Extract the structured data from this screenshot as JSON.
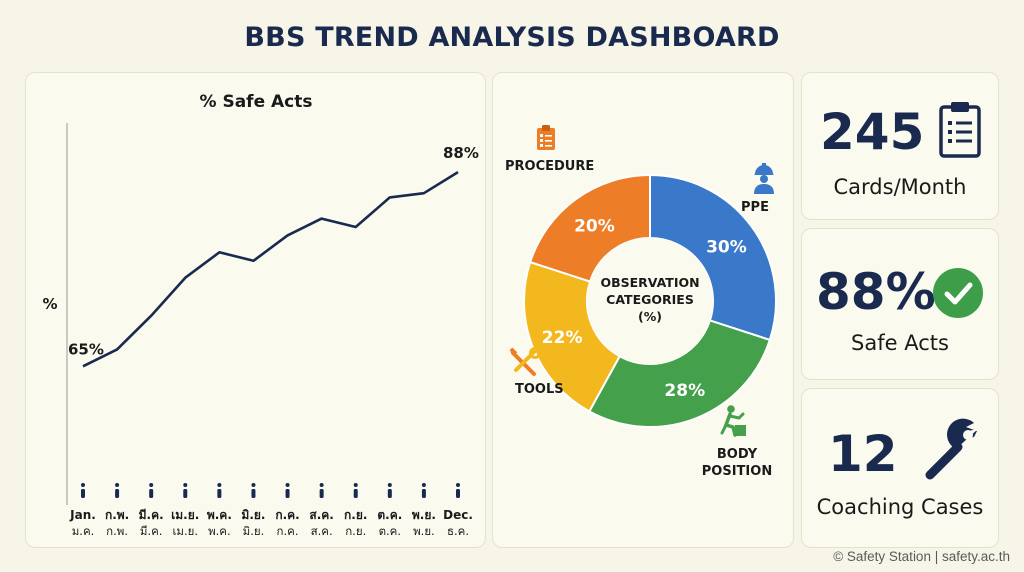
{
  "header": {
    "title": "BBS TREND ANALYSIS DASHBOARD"
  },
  "chart_data": [
    {
      "type": "line",
      "title": "% Safe Acts",
      "ylabel": "%",
      "categories": [
        "Jan.",
        "ก.พ.",
        "มี.ค.",
        "เม.ย.",
        "พ.ค.",
        "มิ.ย.",
        "ก.ค.",
        "ส.ค.",
        "ก.ย.",
        "ต.ค.",
        "พ.ย.",
        "Dec."
      ],
      "categories_secondary": [
        "ม.ค.",
        "ก.พ.",
        "มี.ค.",
        "เม.ย.",
        "พ.ค.",
        "มิ.ย.",
        "ก.ค.",
        "ส.ค.",
        "ก.ย.",
        "ต.ค.",
        "พ.ย.",
        "ธ.ค."
      ],
      "values": [
        65,
        67,
        71,
        75.5,
        78.5,
        77.5,
        80.5,
        82.5,
        81.5,
        85,
        85.5,
        88
      ],
      "ylim": [
        50,
        95
      ],
      "data_labels": {
        "first": "65%",
        "last": "88%"
      },
      "grid": false,
      "color": "#1a2a4f"
    },
    {
      "type": "pie",
      "title": "OBSERVATION CATEGORIES (%)",
      "center_lines": [
        "OBSERVATION",
        "CATEGORIES",
        "(%)"
      ],
      "slices": [
        {
          "label": "PPE",
          "value": 30,
          "value_label": "30%",
          "color": "#3a78c9",
          "icon": "hard-hat-worker-icon",
          "label_lines": [
            "PPE"
          ]
        },
        {
          "label": "BODY POSITION",
          "value": 28,
          "value_label": "28%",
          "color": "#44a04a",
          "icon": "body-position-icon",
          "label_lines": [
            "BODY",
            "POSITION"
          ]
        },
        {
          "label": "TOOLS",
          "value": 22,
          "value_label": "22%",
          "color": "#f2b81e",
          "icon": "tools-icon",
          "label_lines": [
            "TOOLS"
          ]
        },
        {
          "label": "PROCEDURE",
          "value": 20,
          "value_label": "20%",
          "color": "#ee7d28",
          "icon": "clipboard-checklist-icon",
          "label_lines": [
            "PROCEDURE"
          ]
        }
      ]
    }
  ],
  "kpis": [
    {
      "value": "245",
      "label": "Cards/Month",
      "icon": "clipboard-icon"
    },
    {
      "value": "88%",
      "label": "Safe Acts",
      "icon": "check-circle-icon",
      "icon_color": "#3e9d48"
    },
    {
      "value": "12",
      "label": "Coaching Cases",
      "icon": "wrench-icon"
    }
  ],
  "footer": {
    "credit": "© Safety Station | safety.ac.th"
  }
}
